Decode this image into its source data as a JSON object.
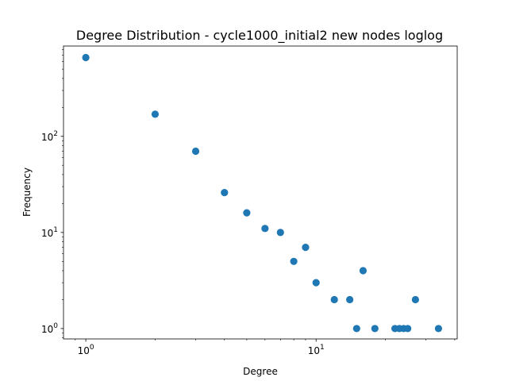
{
  "chart_data": {
    "type": "scatter",
    "title": "Degree Distribution - cycle1000_initial2 new nodes loglog",
    "xlabel": "Degree",
    "ylabel": "Frequency",
    "xscale": "log",
    "yscale": "log",
    "xlim": [
      0.8,
      41
    ],
    "ylim": [
      0.78,
      870
    ],
    "x_ticks": [
      {
        "value": 1,
        "base": "10",
        "exp": "0"
      },
      {
        "value": 10,
        "base": "10",
        "exp": "1"
      }
    ],
    "y_ticks": [
      {
        "value": 1,
        "base": "10",
        "exp": "0"
      },
      {
        "value": 10,
        "base": "10",
        "exp": "1"
      },
      {
        "value": 100,
        "base": "10",
        "exp": "2"
      }
    ],
    "grid": false,
    "marker_color": "#1f77b4",
    "points": [
      {
        "x": 1,
        "y": 660
      },
      {
        "x": 2,
        "y": 170
      },
      {
        "x": 3,
        "y": 70
      },
      {
        "x": 4,
        "y": 26
      },
      {
        "x": 5,
        "y": 16
      },
      {
        "x": 6,
        "y": 11
      },
      {
        "x": 7,
        "y": 10
      },
      {
        "x": 8,
        "y": 5
      },
      {
        "x": 9,
        "y": 7
      },
      {
        "x": 10,
        "y": 3
      },
      {
        "x": 12,
        "y": 2
      },
      {
        "x": 14,
        "y": 2
      },
      {
        "x": 15,
        "y": 1
      },
      {
        "x": 16,
        "y": 4
      },
      {
        "x": 18,
        "y": 1
      },
      {
        "x": 22,
        "y": 1
      },
      {
        "x": 23,
        "y": 1
      },
      {
        "x": 24,
        "y": 1
      },
      {
        "x": 25,
        "y": 1
      },
      {
        "x": 27,
        "y": 2
      },
      {
        "x": 34,
        "y": 1
      }
    ]
  }
}
